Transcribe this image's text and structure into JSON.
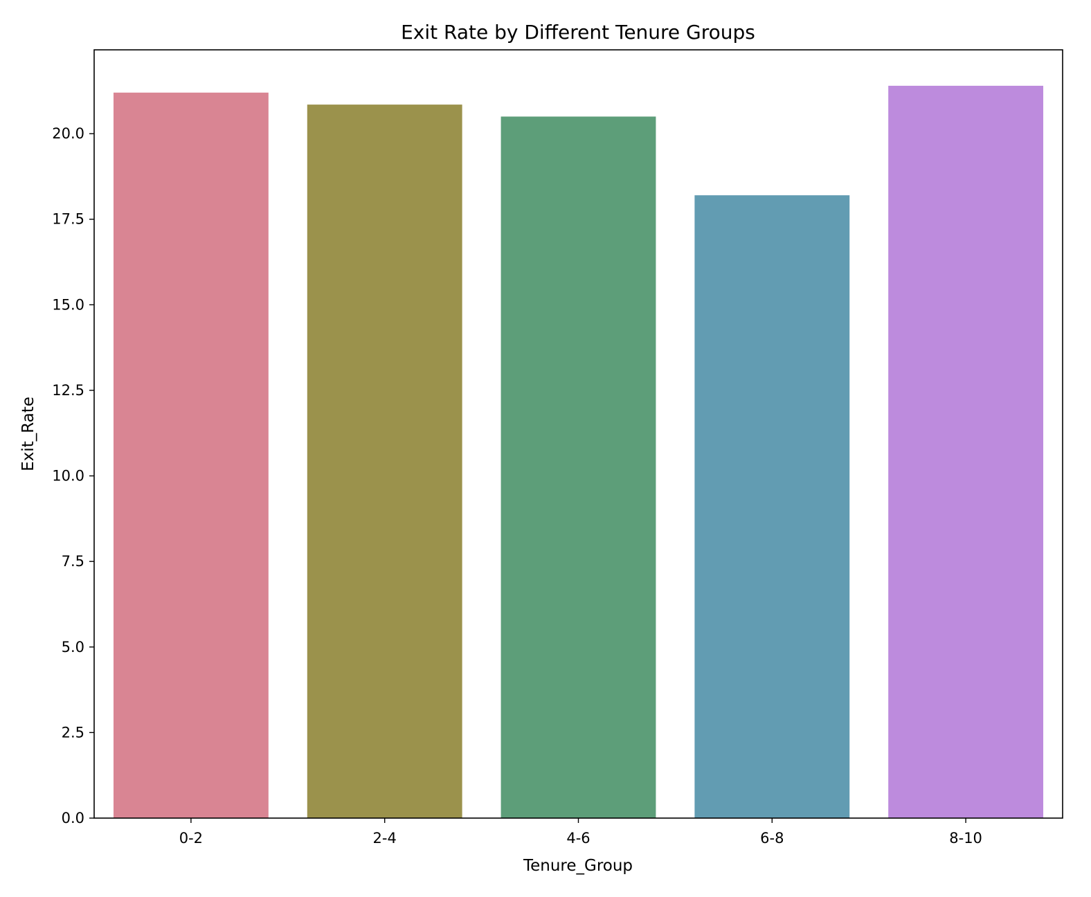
{
  "chart_data": {
    "type": "bar",
    "title": "Exit Rate by Different Tenure Groups",
    "xlabel": "Tenure_Group",
    "ylabel": "Exit_Rate",
    "categories": [
      "0-2",
      "2-4",
      "4-6",
      "6-8",
      "8-10"
    ],
    "values": [
      21.2,
      20.85,
      20.5,
      18.2,
      21.4
    ],
    "colors": [
      "#d98593",
      "#9b924c",
      "#5d9e79",
      "#629cb2",
      "#bd8bdd"
    ],
    "ylim": [
      0,
      22.45
    ],
    "yticks": [
      0.0,
      2.5,
      5.0,
      7.5,
      10.0,
      12.5,
      15.0,
      17.5,
      20.0
    ],
    "ytick_labels": [
      "0.0",
      "2.5",
      "5.0",
      "7.5",
      "10.0",
      "12.5",
      "15.0",
      "17.5",
      "20.0"
    ],
    "grid": false,
    "legend": "none"
  }
}
